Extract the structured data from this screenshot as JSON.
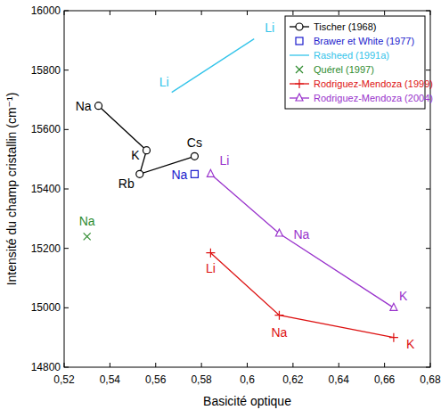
{
  "chart_data": {
    "type": "line",
    "xlabel": "Basicité optique",
    "ylabel": "Intensité du champ cristallin (cm⁻¹)",
    "xlim": [
      0.52,
      0.68
    ],
    "ylim": [
      14800,
      16000
    ],
    "xticks": [
      {
        "value": 0.52,
        "label": "0,52"
      },
      {
        "value": 0.54,
        "label": "0,54"
      },
      {
        "value": 0.56,
        "label": "0,56"
      },
      {
        "value": 0.58,
        "label": "0,58"
      },
      {
        "value": 0.6,
        "label": "0,6"
      },
      {
        "value": 0.62,
        "label": "0,62"
      },
      {
        "value": 0.64,
        "label": "0,64"
      },
      {
        "value": 0.66,
        "label": "0,66"
      },
      {
        "value": 0.68,
        "label": "0,68"
      }
    ],
    "yticks": [
      14800,
      15000,
      15200,
      15400,
      15600,
      15800,
      16000
    ],
    "grid": false,
    "legend": "upper right",
    "series": [
      {
        "name": "Tischer (1968)",
        "color": "#000000",
        "marker": "circle",
        "line_style": "solid",
        "x": [
          0.535,
          0.556,
          0.553,
          0.577
        ],
        "values": [
          15680,
          15530,
          15450,
          15510
        ],
        "labels": [
          "Na",
          "K",
          "Rb",
          "Cs"
        ]
      },
      {
        "name": "Brawer et White (1977)",
        "color": "#1a1acc",
        "marker": "square",
        "line_style": "none",
        "x": [
          0.577
        ],
        "values": [
          15450
        ],
        "labels": [
          "Na"
        ]
      },
      {
        "name": "Rasheed (1991a)",
        "color": "#33c4ea",
        "marker": "none",
        "line_style": "solid",
        "x": [
          0.567,
          0.603
        ],
        "values": [
          15725,
          15905
        ],
        "labels": [
          "Li",
          "Li"
        ]
      },
      {
        "name": "Quérel (1997)",
        "color": "#2e8b2e",
        "marker": "x",
        "line_style": "none",
        "x": [
          0.53
        ],
        "values": [
          15240
        ],
        "labels": [
          "Na"
        ]
      },
      {
        "name": "Rodriguez-Mendoza (1999)",
        "color": "#dd1111",
        "marker": "plus",
        "line_style": "solid",
        "x": [
          0.584,
          0.614,
          0.664
        ],
        "values": [
          15185,
          14975,
          14900
        ],
        "labels": [
          "Li",
          "Na",
          "K"
        ]
      },
      {
        "name": "Rodriguez-Mendoza (2004)",
        "color": "#9933cc",
        "marker": "triangle",
        "line_style": "solid",
        "x": [
          0.584,
          0.614,
          0.664
        ],
        "values": [
          15450,
          15250,
          15000
        ],
        "labels": [
          "Li",
          "Na",
          "K"
        ]
      }
    ]
  }
}
